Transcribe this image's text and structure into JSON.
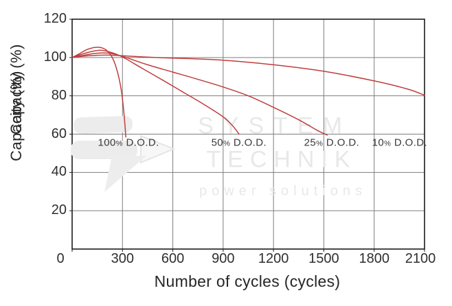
{
  "figure": {
    "origin_note": "shared origin tick label",
    "background": "#ffffff"
  },
  "watermark": {
    "line1": "SYSTEM",
    "line2": "TECHNIK",
    "line3": "power solutions",
    "logo": "arrow-flash-logo",
    "color": "#e8e8e8"
  },
  "colors": {
    "curve": "#bf3d3d",
    "grid": "#7d7d7d",
    "spine": "#1a1a1a",
    "tick_text": "#2e2e2e",
    "dod_text": "#3a3a3a"
  },
  "chart_data": {
    "type": "line",
    "title": "",
    "xlabel": "Number of cycles (cycles)",
    "ylabel": "Capacity (%)",
    "xlim": [
      0,
      2100
    ],
    "ylim": [
      0,
      120
    ],
    "x_ticks": [
      0,
      300,
      600,
      900,
      1200,
      1500,
      1800,
      2100
    ],
    "y_ticks": [
      20,
      40,
      60,
      80,
      100,
      120
    ],
    "grid": true,
    "legend_position": "inline-labels",
    "line_color": "#bf3d3d",
    "series": [
      {
        "name": "100% D.O.D.",
        "label": {
          "num": "100",
          "pct": "%",
          "rest": " D.O.D."
        },
        "label_anchor": [
          336,
          55.5
        ],
        "points": [
          [
            0,
            100
          ],
          [
            40,
            101.8
          ],
          [
            90,
            104.2
          ],
          [
            140,
            105.3
          ],
          [
            180,
            105
          ],
          [
            215,
            103
          ],
          [
            245,
            99
          ],
          [
            270,
            92.5
          ],
          [
            290,
            84.5
          ],
          [
            303,
            76
          ],
          [
            313,
            66.5
          ],
          [
            320,
            58.5
          ]
        ]
      },
      {
        "name": "50% D.O.D.",
        "label": {
          "num": "50",
          "pct": "%",
          "rest": " D.O.D."
        },
        "label_anchor": [
          994,
          55.5
        ],
        "points": [
          [
            0,
            100
          ],
          [
            50,
            101.5
          ],
          [
            110,
            103
          ],
          [
            165,
            103.8
          ],
          [
            220,
            103
          ],
          [
            300,
            100.3
          ],
          [
            420,
            94.2
          ],
          [
            540,
            88.2
          ],
          [
            660,
            82
          ],
          [
            780,
            75.8
          ],
          [
            900,
            69
          ],
          [
            955,
            64.5
          ],
          [
            995,
            60
          ]
        ]
      },
      {
        "name": "25% D.O.D.",
        "label": {
          "num": "25",
          "pct": "%",
          "rest": " D.O.D."
        },
        "label_anchor": [
          1547,
          55.5
        ],
        "points": [
          [
            0,
            100
          ],
          [
            60,
            101
          ],
          [
            140,
            102.2
          ],
          [
            215,
            102.3
          ],
          [
            300,
            100.6
          ],
          [
            450,
            96.2
          ],
          [
            600,
            92.4
          ],
          [
            750,
            88.6
          ],
          [
            900,
            84.6
          ],
          [
            1050,
            80
          ],
          [
            1200,
            74
          ],
          [
            1350,
            67.5
          ],
          [
            1460,
            62
          ],
          [
            1520,
            59.5
          ]
        ]
      },
      {
        "name": "10% D.O.D.",
        "label": {
          "num": "10",
          "pct": "%",
          "rest": " D.O.D."
        },
        "label_anchor": [
          1952,
          55.5
        ],
        "points": [
          [
            0,
            100
          ],
          [
            100,
            100.9
          ],
          [
            200,
            101.3
          ],
          [
            300,
            100.9
          ],
          [
            450,
            100.2
          ],
          [
            600,
            99.7
          ],
          [
            900,
            98.6
          ],
          [
            1200,
            96.2
          ],
          [
            1500,
            92.8
          ],
          [
            1800,
            87.8
          ],
          [
            2000,
            83.5
          ],
          [
            2100,
            80.3
          ]
        ]
      }
    ]
  }
}
